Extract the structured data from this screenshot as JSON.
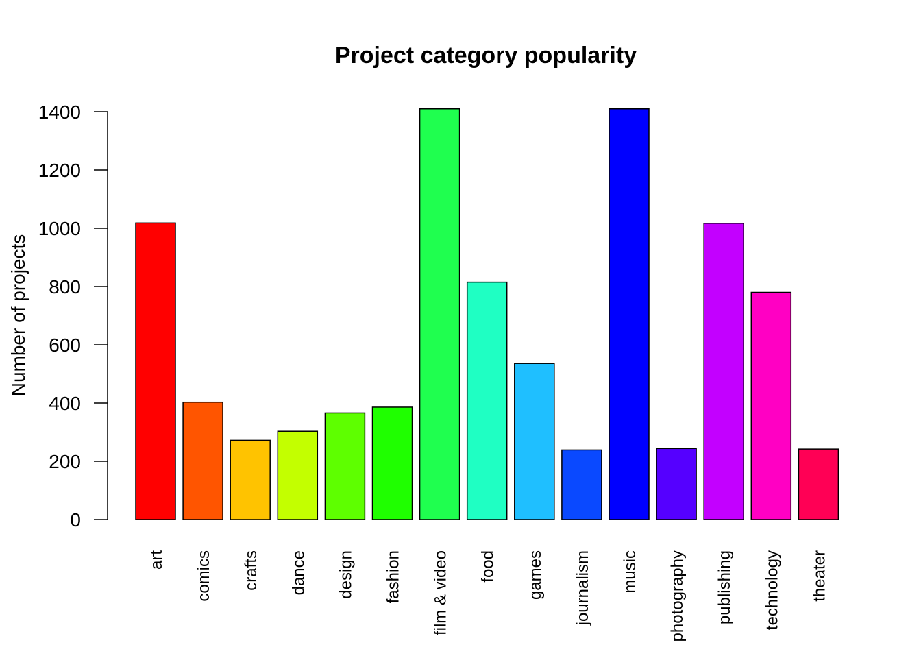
{
  "chart_data": {
    "type": "bar",
    "title": "Project category popularity",
    "ylabel": "Number of projects",
    "xlabel": "",
    "ylim": [
      0,
      1400
    ],
    "yticks": [
      0,
      200,
      400,
      600,
      800,
      1000,
      1200,
      1400
    ],
    "categories": [
      "art",
      "comics",
      "crafts",
      "dance",
      "design",
      "fashion",
      "film & video",
      "food",
      "games",
      "journalism",
      "music",
      "photography",
      "publishing",
      "technology",
      "theater"
    ],
    "values": [
      1018,
      403,
      272,
      303,
      366,
      386,
      1410,
      815,
      536,
      239,
      1410,
      244,
      1017,
      780,
      242
    ],
    "colors": [
      "#FF0000",
      "#FF5500",
      "#FFC300",
      "#C3FF00",
      "#5EFF00",
      "#1FFF00",
      "#1FFF4F",
      "#1FFFC3",
      "#1FBFFF",
      "#0A49FF",
      "#0000FF",
      "#5500FF",
      "#C300FF",
      "#FF00C3",
      "#FF0055"
    ],
    "grid": false,
    "legend": "none"
  }
}
